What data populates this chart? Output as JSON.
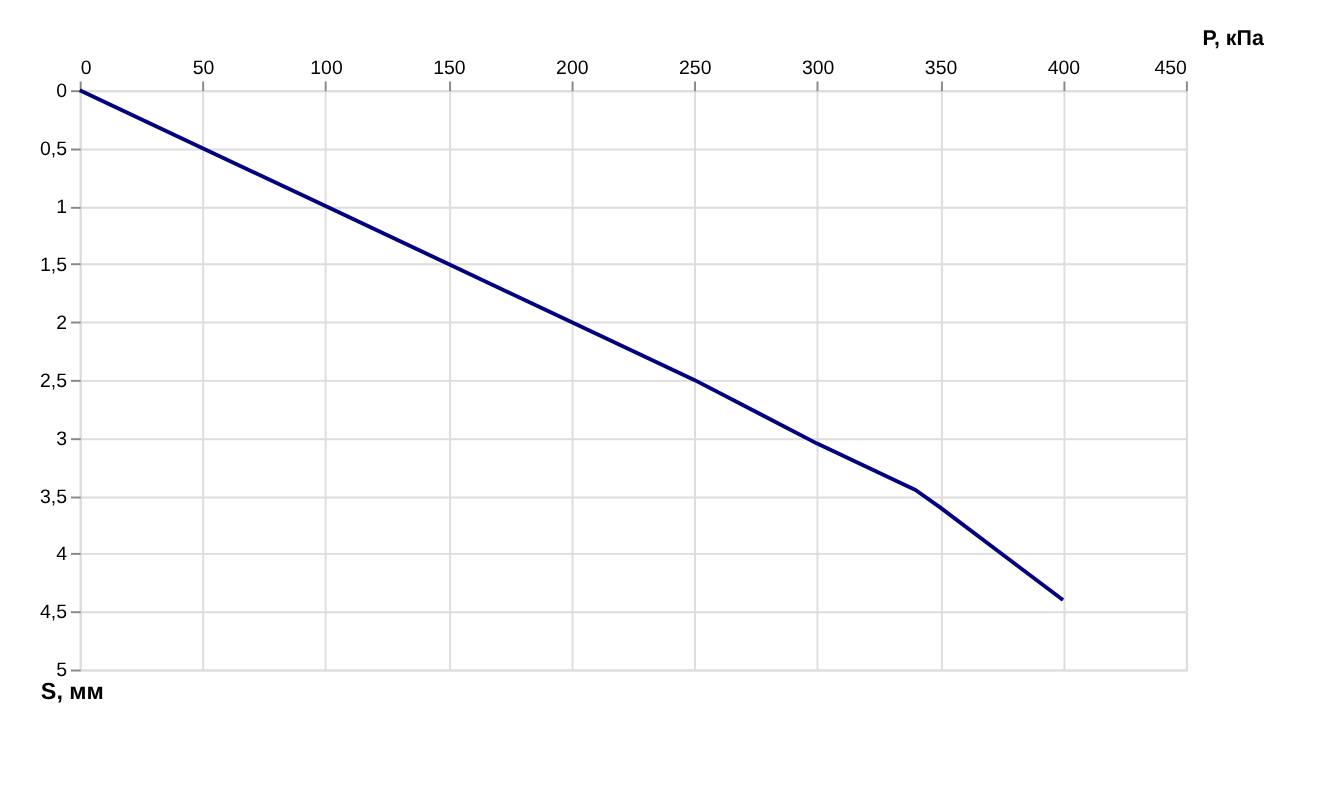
{
  "chart_data": {
    "type": "line",
    "xlabel": "P, кПа",
    "ylabel": "S, мм",
    "x": [
      0,
      50,
      100,
      150,
      200,
      250,
      300,
      340,
      350,
      400
    ],
    "series": [
      {
        "color": "#000080",
        "values": [
          0,
          0.5,
          1.0,
          1.5,
          2.0,
          2.5,
          3.05,
          3.45,
          3.6,
          4.4
        ]
      }
    ],
    "xlim": [
      0,
      450
    ],
    "xticks": [
      0,
      50,
      100,
      150,
      200,
      250,
      300,
      350,
      400,
      450
    ],
    "ylim": [
      5,
      0
    ],
    "yticks": [
      0,
      {
        "value": 0.5,
        "label": "0,5"
      },
      1,
      {
        "value": 1.5,
        "label": "1,5"
      },
      2,
      {
        "value": 2.5,
        "label": "2,5"
      },
      3,
      {
        "value": 3.5,
        "label": "3,5"
      },
      4,
      {
        "value": 4.5,
        "label": "4,5"
      },
      5
    ],
    "grid": true,
    "marker": "none",
    "line_style": "solid"
  }
}
